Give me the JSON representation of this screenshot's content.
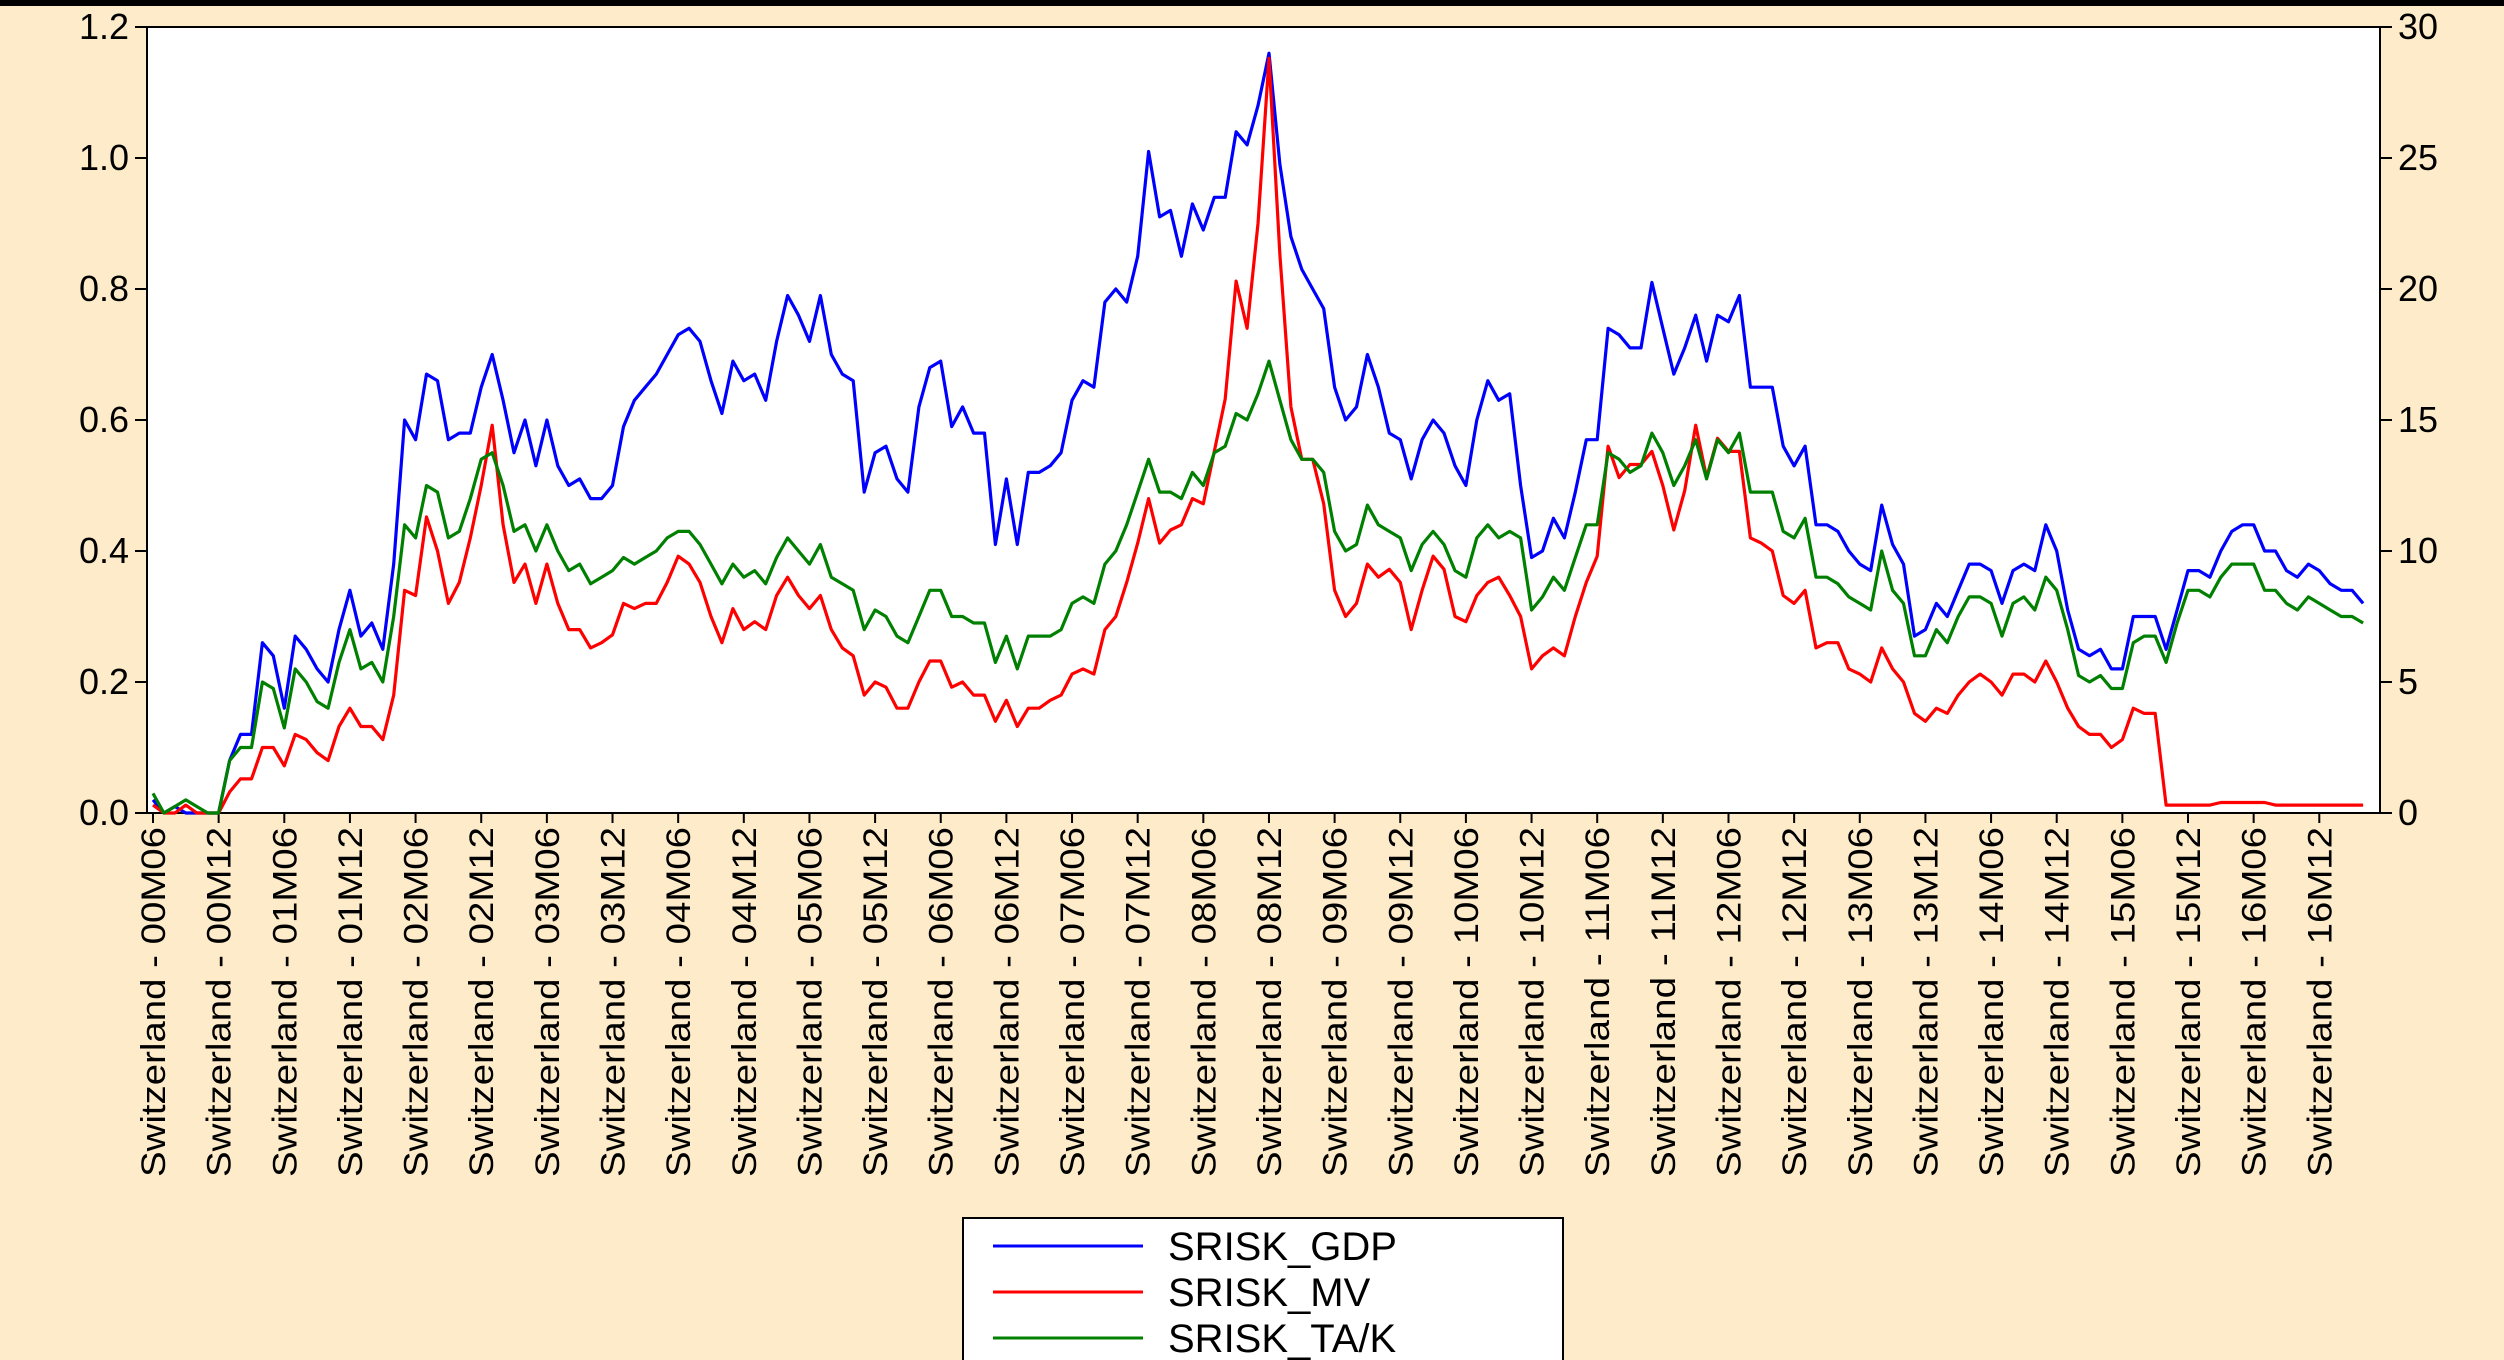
{
  "chart_data": {
    "type": "line",
    "categories": [
      "Switzerland - 00M06",
      null,
      null,
      null,
      null,
      null,
      "Switzerland - 00M12",
      null,
      null,
      null,
      null,
      null,
      "Switzerland - 01M06",
      null,
      null,
      null,
      null,
      null,
      "Switzerland - 01M12",
      null,
      null,
      null,
      null,
      null,
      "Switzerland - 02M06",
      null,
      null,
      null,
      null,
      null,
      "Switzerland - 02M12",
      null,
      null,
      null,
      null,
      null,
      "Switzerland - 03M06",
      null,
      null,
      null,
      null,
      null,
      "Switzerland - 03M12",
      null,
      null,
      null,
      null,
      null,
      "Switzerland - 04M06",
      null,
      null,
      null,
      null,
      null,
      "Switzerland - 04M12",
      null,
      null,
      null,
      null,
      null,
      "Switzerland - 05M06",
      null,
      null,
      null,
      null,
      null,
      "Switzerland - 05M12",
      null,
      null,
      null,
      null,
      null,
      "Switzerland - 06M06",
      null,
      null,
      null,
      null,
      null,
      "Switzerland - 06M12",
      null,
      null,
      null,
      null,
      null,
      "Switzerland - 07M06",
      null,
      null,
      null,
      null,
      null,
      "Switzerland - 07M12",
      null,
      null,
      null,
      null,
      null,
      "Switzerland - 08M06",
      null,
      null,
      null,
      null,
      null,
      "Switzerland - 08M12",
      null,
      null,
      null,
      null,
      null,
      "Switzerland - 09M06",
      null,
      null,
      null,
      null,
      null,
      "Switzerland - 09M12",
      null,
      null,
      null,
      null,
      null,
      "Switzerland - 10M06",
      null,
      null,
      null,
      null,
      null,
      "Switzerland - 10M12",
      null,
      null,
      null,
      null,
      null,
      "Switzerland - 11M06",
      null,
      null,
      null,
      null,
      null,
      "Switzerland - 11M12",
      null,
      null,
      null,
      null,
      null,
      "Switzerland - 12M06",
      null,
      null,
      null,
      null,
      null,
      "Switzerland - 12M12",
      null,
      null,
      null,
      null,
      null,
      "Switzerland - 13M06",
      null,
      null,
      null,
      null,
      null,
      "Switzerland - 13M12",
      null,
      null,
      null,
      null,
      null,
      "Switzerland - 14M06",
      null,
      null,
      null,
      null,
      null,
      "Switzerland - 14M12",
      null,
      null,
      null,
      null,
      null,
      "Switzerland - 15M06",
      null,
      null,
      null,
      null,
      null,
      "Switzerland - 15M12",
      null,
      null,
      null,
      null,
      null,
      "Switzerland - 16M06",
      null,
      null,
      null,
      null,
      null,
      "Switzerland - 16M12",
      null,
      null,
      null,
      null
    ],
    "series": [
      {
        "name": "SRISK_GDP",
        "color": "#0000ff",
        "values": [
          0.02,
          0,
          0.01,
          0,
          0,
          0,
          0,
          0.08,
          0.12,
          0.12,
          0.26,
          0.24,
          0.16,
          0.27,
          0.25,
          0.22,
          0.2,
          0.28,
          0.34,
          0.27,
          0.29,
          0.25,
          0.38,
          0.6,
          0.57,
          0.67,
          0.66,
          0.57,
          0.58,
          0.58,
          0.65,
          0.7,
          0.63,
          0.55,
          0.6,
          0.53,
          0.6,
          0.53,
          0.5,
          0.51,
          0.48,
          0.48,
          0.5,
          0.59,
          0.63,
          0.65,
          0.67,
          0.7,
          0.73,
          0.74,
          0.72,
          0.66,
          0.61,
          0.69,
          0.66,
          0.67,
          0.63,
          0.72,
          0.79,
          0.76,
          0.72,
          0.79,
          0.7,
          0.67,
          0.66,
          0.49,
          0.55,
          0.56,
          0.51,
          0.49,
          0.62,
          0.68,
          0.69,
          0.59,
          0.62,
          0.58,
          0.58,
          0.41,
          0.51,
          0.41,
          0.52,
          0.52,
          0.53,
          0.55,
          0.63,
          0.66,
          0.65,
          0.78,
          0.8,
          0.78,
          0.85,
          1.01,
          0.91,
          0.92,
          0.85,
          0.93,
          0.89,
          0.94,
          0.94,
          1.04,
          1.02,
          1.08,
          1.16,
          0.99,
          0.88,
          0.83,
          0.8,
          0.77,
          0.65,
          0.6,
          0.62,
          0.7,
          0.65,
          0.58,
          0.57,
          0.51,
          0.57,
          0.6,
          0.58,
          0.53,
          0.5,
          0.6,
          0.66,
          0.63,
          0.64,
          0.5,
          0.39,
          0.4,
          0.45,
          0.42,
          0.49,
          0.57,
          0.57,
          0.74,
          0.73,
          0.71,
          0.71,
          0.81,
          0.74,
          0.67,
          0.71,
          0.76,
          0.69,
          0.76,
          0.75,
          0.79,
          0.65,
          0.65,
          0.65,
          0.56,
          0.53,
          0.56,
          0.44,
          0.44,
          0.43,
          0.4,
          0.38,
          0.37,
          0.47,
          0.41,
          0.38,
          0.27,
          0.28,
          0.32,
          0.3,
          0.34,
          0.38,
          0.38,
          0.37,
          0.32,
          0.37,
          0.38,
          0.37,
          0.44,
          0.4,
          0.31,
          0.25,
          0.24,
          0.25,
          0.22,
          0.22,
          0.3,
          0.3,
          0.3,
          0.25,
          0.31,
          0.37,
          0.37,
          0.36,
          0.4,
          0.43,
          0.44,
          0.44,
          0.4,
          0.4,
          0.37,
          0.36,
          0.38,
          0.37,
          0.35,
          0.34,
          0.34,
          0.32
        ]
      },
      {
        "name": "SRISK_MV",
        "color": "#ff0000",
        "axis": "y2",
        "values": [
          0.3,
          0,
          0,
          0.3,
          0,
          0,
          0,
          0.8,
          1.3,
          1.3,
          2.5,
          2.5,
          1.8,
          3,
          2.8,
          2.3,
          2,
          3.3,
          4,
          3.3,
          3.3,
          2.8,
          4.5,
          8.5,
          8.3,
          11.3,
          10,
          8,
          8.8,
          10.5,
          12.5,
          14.8,
          11,
          8.8,
          9.5,
          8,
          9.5,
          8,
          7,
          7,
          6.3,
          6.5,
          6.8,
          8,
          7.8,
          8,
          8,
          8.8,
          9.8,
          9.5,
          8.8,
          7.5,
          6.5,
          7.8,
          7,
          7.3,
          7,
          8.3,
          9,
          8.3,
          7.8,
          8.3,
          7,
          6.3,
          6,
          4.5,
          5,
          4.8,
          4,
          4,
          5,
          5.8,
          5.8,
          4.8,
          5,
          4.5,
          4.5,
          3.5,
          4.3,
          3.3,
          4,
          4,
          4.3,
          4.5,
          5.3,
          5.5,
          5.3,
          7,
          7.5,
          8.8,
          10.3,
          12,
          10.3,
          10.8,
          11,
          12,
          11.8,
          13.8,
          15.8,
          20.3,
          18.5,
          22.5,
          28.8,
          21.3,
          15.5,
          13.5,
          13.5,
          11.8,
          8.5,
          7.5,
          8,
          9.5,
          9,
          9.3,
          8.8,
          7,
          8.5,
          9.8,
          9.3,
          7.5,
          7.3,
          8.3,
          8.8,
          9,
          8.3,
          7.5,
          5.5,
          6,
          6.3,
          6,
          7.5,
          8.8,
          9.8,
          14,
          12.8,
          13.3,
          13.3,
          13.8,
          12.5,
          10.8,
          12.3,
          14.8,
          12.8,
          14.3,
          13.8,
          13.8,
          10.5,
          10.3,
          10,
          8.3,
          8,
          8.5,
          6.3,
          6.5,
          6.5,
          5.5,
          5.3,
          5,
          6.3,
          5.5,
          5,
          3.8,
          3.5,
          4,
          3.8,
          4.5,
          5,
          5.3,
          5,
          4.5,
          5.3,
          5.3,
          5,
          5.8,
          5,
          4,
          3.3,
          3,
          3,
          2.5,
          2.8,
          4,
          3.8,
          3.8,
          0.3,
          0.3,
          0.3,
          0.3,
          0.3,
          0.4,
          0.4,
          0.4,
          0.4,
          0.4,
          0.3,
          0.3,
          0.3,
          0.3,
          0.3,
          0.3,
          0.3,
          0.3,
          0.3
        ]
      },
      {
        "name": "SRISK_TA/K",
        "color": "#008000",
        "values": [
          0.03,
          0,
          0.01,
          0.02,
          0.01,
          0,
          0,
          0.08,
          0.1,
          0.1,
          0.2,
          0.19,
          0.13,
          0.22,
          0.2,
          0.17,
          0.16,
          0.23,
          0.28,
          0.22,
          0.23,
          0.2,
          0.3,
          0.44,
          0.42,
          0.5,
          0.49,
          0.42,
          0.43,
          0.48,
          0.54,
          0.55,
          0.5,
          0.43,
          0.44,
          0.4,
          0.44,
          0.4,
          0.37,
          0.38,
          0.35,
          0.36,
          0.37,
          0.39,
          0.38,
          0.39,
          0.4,
          0.42,
          0.43,
          0.43,
          0.41,
          0.38,
          0.35,
          0.38,
          0.36,
          0.37,
          0.35,
          0.39,
          0.42,
          0.4,
          0.38,
          0.41,
          0.36,
          0.35,
          0.34,
          0.28,
          0.31,
          0.3,
          0.27,
          0.26,
          0.3,
          0.34,
          0.34,
          0.3,
          0.3,
          0.29,
          0.29,
          0.23,
          0.27,
          0.22,
          0.27,
          0.27,
          0.27,
          0.28,
          0.32,
          0.33,
          0.32,
          0.38,
          0.4,
          0.44,
          0.49,
          0.54,
          0.49,
          0.49,
          0.48,
          0.52,
          0.5,
          0.55,
          0.56,
          0.61,
          0.6,
          0.64,
          0.69,
          0.63,
          0.57,
          0.54,
          0.54,
          0.52,
          0.43,
          0.4,
          0.41,
          0.47,
          0.44,
          0.43,
          0.42,
          0.37,
          0.41,
          0.43,
          0.41,
          0.37,
          0.36,
          0.42,
          0.44,
          0.42,
          0.43,
          0.42,
          0.31,
          0.33,
          0.36,
          0.34,
          0.39,
          0.44,
          0.44,
          0.55,
          0.54,
          0.52,
          0.53,
          0.58,
          0.55,
          0.5,
          0.53,
          0.57,
          0.51,
          0.57,
          0.55,
          0.58,
          0.49,
          0.49,
          0.49,
          0.43,
          0.42,
          0.45,
          0.36,
          0.36,
          0.35,
          0.33,
          0.32,
          0.31,
          0.4,
          0.34,
          0.32,
          0.24,
          0.24,
          0.28,
          0.26,
          0.3,
          0.33,
          0.33,
          0.32,
          0.27,
          0.32,
          0.33,
          0.31,
          0.36,
          0.34,
          0.28,
          0.21,
          0.2,
          0.21,
          0.19,
          0.19,
          0.26,
          0.27,
          0.27,
          0.23,
          0.29,
          0.34,
          0.34,
          0.33,
          0.36,
          0.38,
          0.38,
          0.38,
          0.34,
          0.34,
          0.32,
          0.31,
          0.33,
          0.32,
          0.31,
          0.3,
          0.3,
          0.29
        ]
      }
    ],
    "ylim": [
      0,
      1.2
    ],
    "yticks": [
      {
        "value": 0,
        "label": "0.0"
      },
      0.2,
      0.4,
      0.6,
      0.8,
      {
        "value": 1,
        "label": "1.0"
      },
      1.2
    ],
    "y2lim": [
      0,
      30
    ],
    "y2ticks": [
      0,
      5,
      10,
      15,
      20,
      25,
      30
    ],
    "legend": "bottom"
  }
}
